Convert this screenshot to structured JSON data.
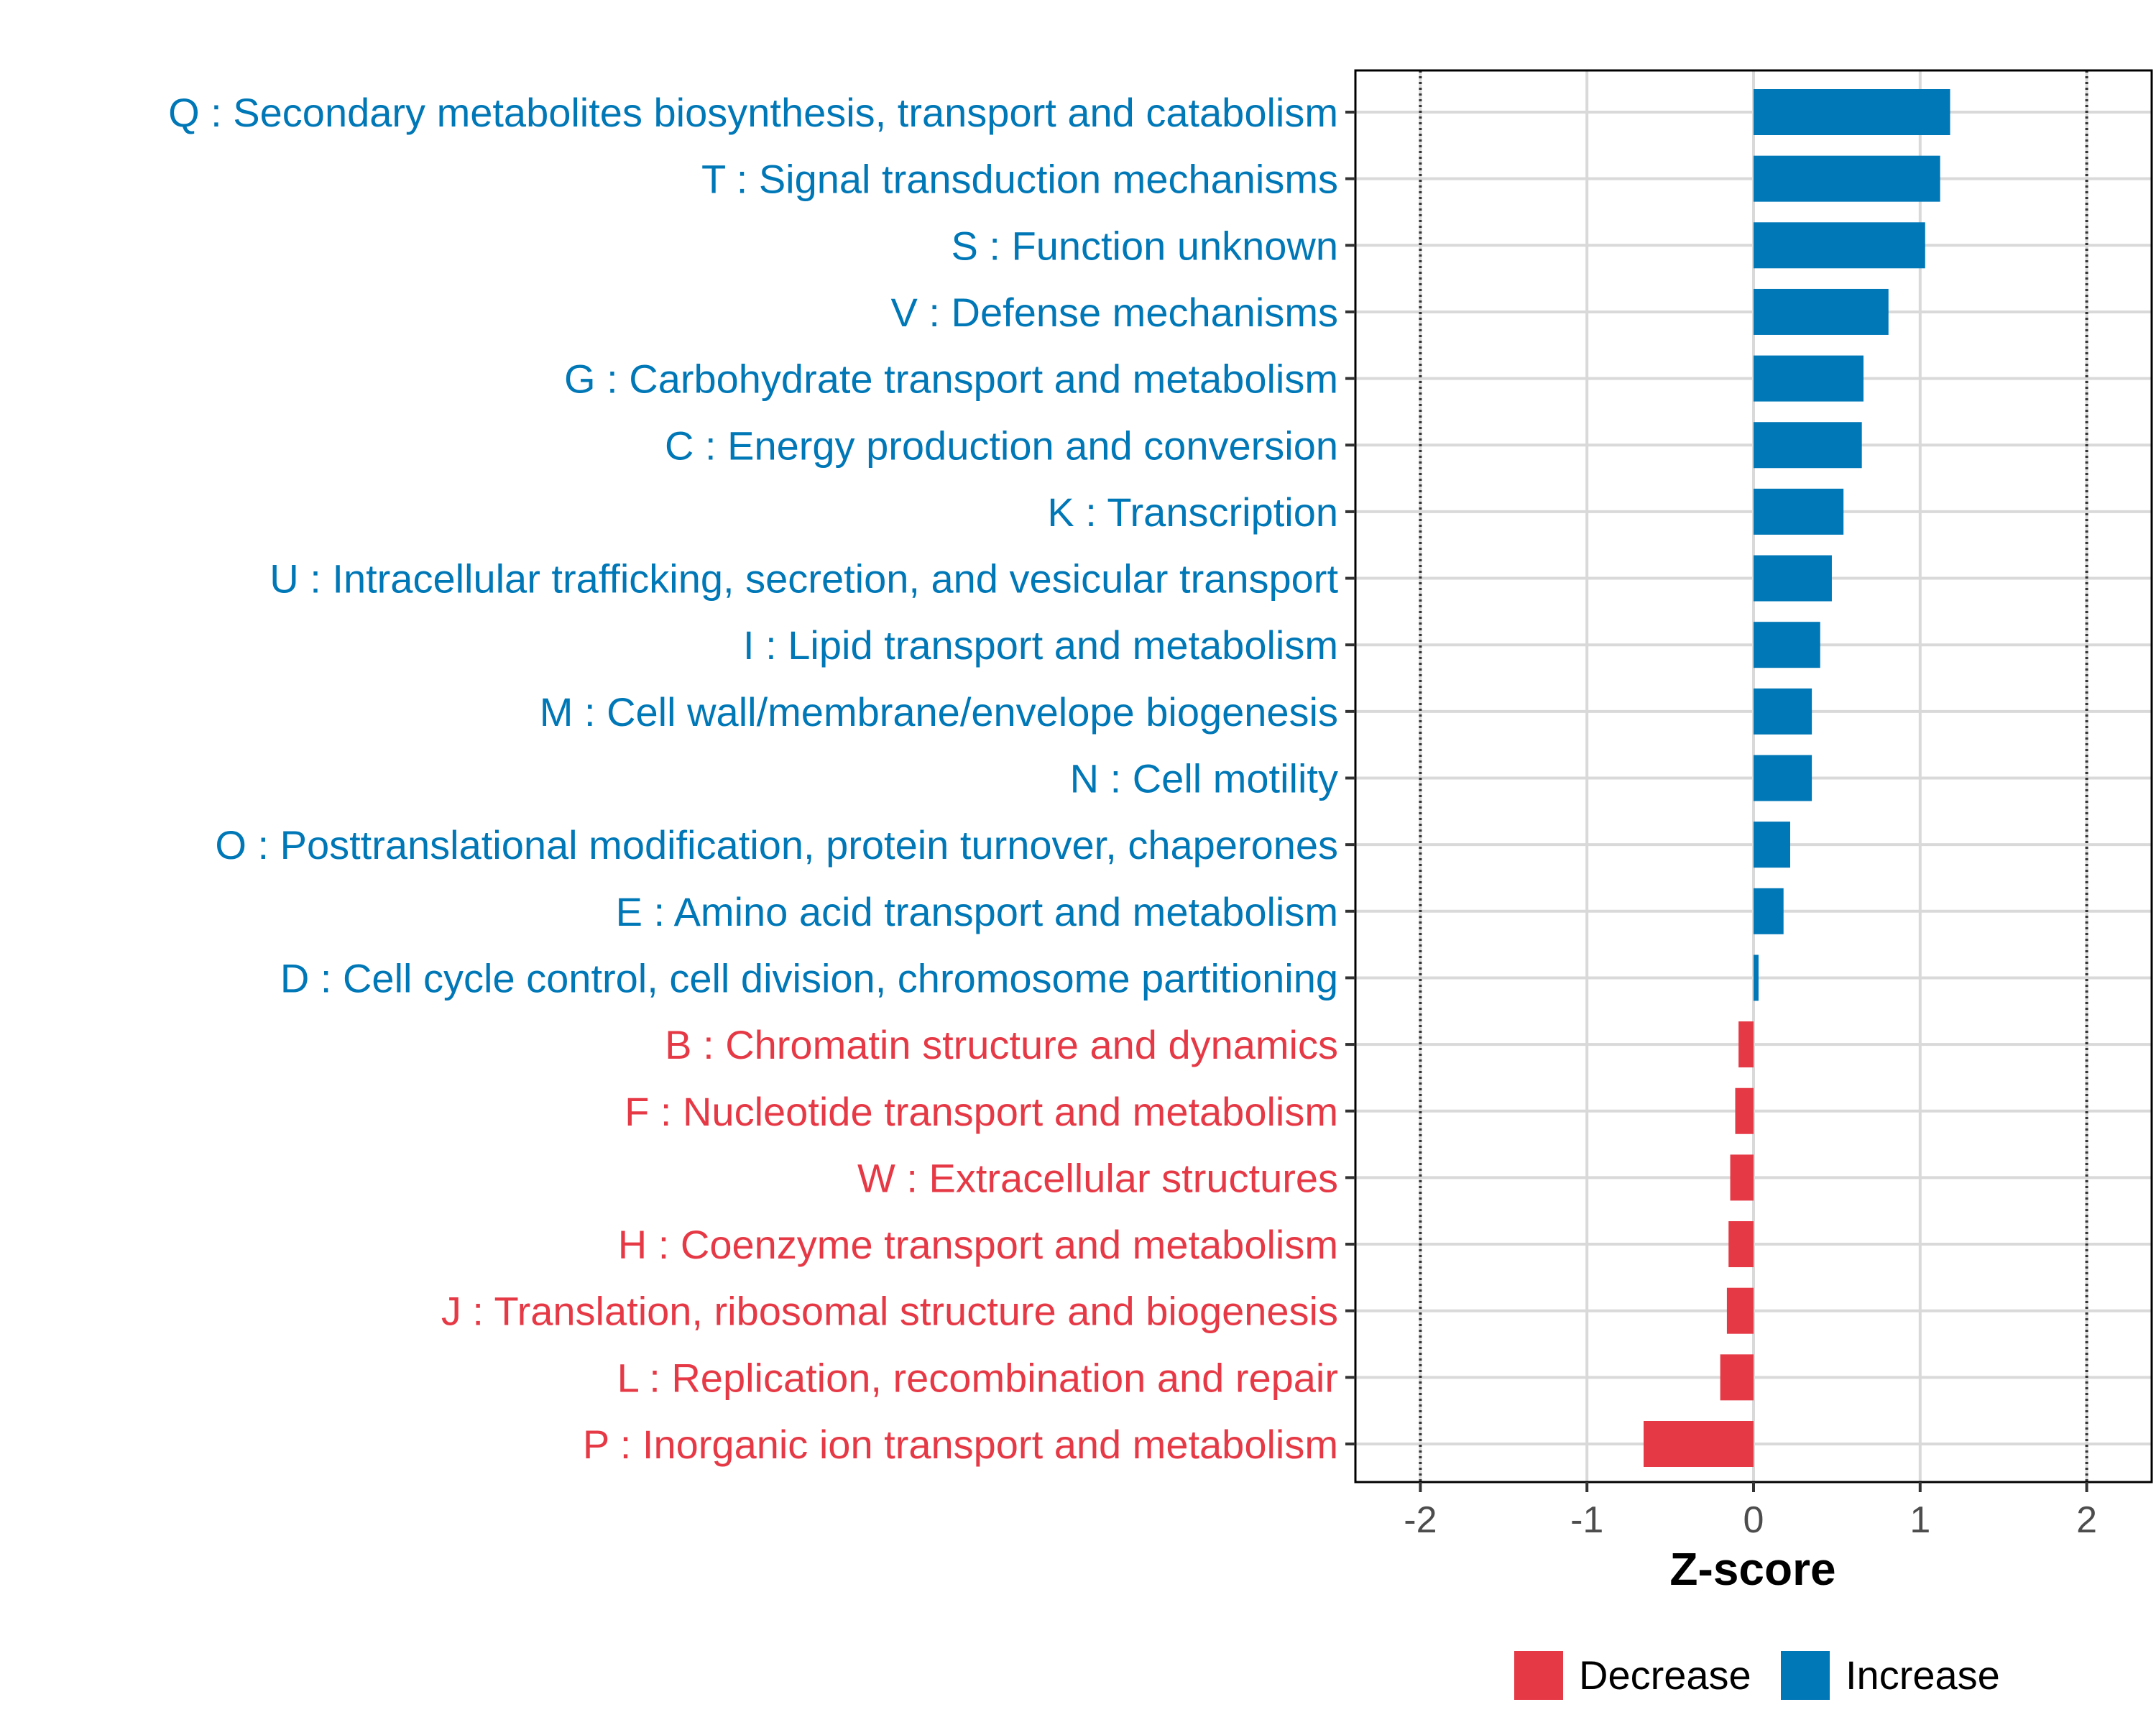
{
  "chart_data": {
    "type": "bar",
    "orientation": "horizontal",
    "categories": [
      "Q : Secondary metabolites biosynthesis, transport and catabolism",
      "T : Signal transduction mechanisms",
      "S : Function unknown",
      "V : Defense mechanisms",
      "G : Carbohydrate transport and metabolism",
      "C : Energy production and conversion",
      "K : Transcription",
      "U : Intracellular trafficking, secretion, and vesicular transport",
      "I : Lipid transport and metabolism",
      "M : Cell wall/membrane/envelope biogenesis",
      "N : Cell motility",
      "O : Posttranslational modification, protein turnover, chaperones",
      "E : Amino acid transport and metabolism",
      "D : Cell cycle control, cell division, chromosome partitioning",
      "B : Chromatin structure and dynamics",
      "F : Nucleotide transport and metabolism",
      "W : Extracellular structures",
      "H : Coenzyme transport and metabolism",
      "J : Translation, ribosomal structure and biogenesis",
      "L : Replication, recombination and repair",
      "P : Inorganic ion transport and metabolism"
    ],
    "values": [
      1.18,
      1.12,
      1.03,
      0.81,
      0.66,
      0.65,
      0.54,
      0.47,
      0.4,
      0.35,
      0.35,
      0.22,
      0.18,
      0.03,
      -0.09,
      -0.11,
      -0.14,
      -0.15,
      -0.16,
      -0.2,
      -0.66
    ],
    "groups": [
      "Increase",
      "Increase",
      "Increase",
      "Increase",
      "Increase",
      "Increase",
      "Increase",
      "Increase",
      "Increase",
      "Increase",
      "Increase",
      "Increase",
      "Increase",
      "Increase",
      "Decrease",
      "Decrease",
      "Decrease",
      "Decrease",
      "Decrease",
      "Decrease",
      "Decrease"
    ],
    "title": "",
    "xlabel": "Z-score",
    "ylabel": "",
    "xlim": [
      -2.39,
      2.39
    ],
    "xticks": [
      -2,
      -1,
      0,
      1,
      2
    ],
    "xtick_labels": [
      "-2",
      "-1",
      "0",
      "1",
      "2"
    ],
    "reference_lines": [
      -2,
      2
    ],
    "grid": true,
    "legend": {
      "position": "bottom",
      "entries": [
        {
          "label": "Decrease",
          "color": "#E63946"
        },
        {
          "label": "Increase",
          "color": "#0077B6"
        }
      ]
    },
    "colors": {
      "Increase": "#0077B6",
      "Decrease": "#E63946",
      "grid": "#D9D9D9",
      "panel_border": "#000000",
      "reference_line": "#333333"
    }
  }
}
